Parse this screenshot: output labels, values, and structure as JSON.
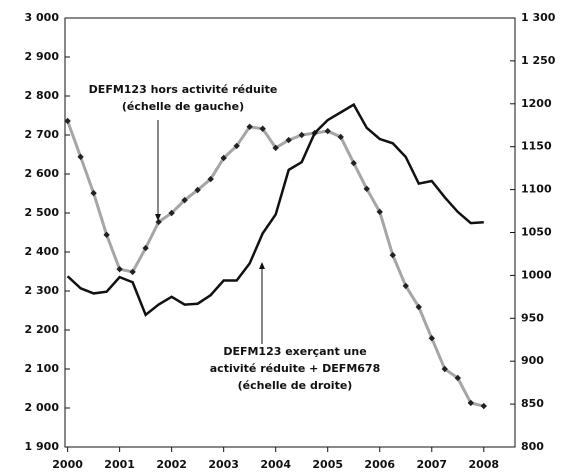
{
  "chart_data": {
    "type": "line",
    "x": [
      2000,
      2000.25,
      2000.5,
      2000.75,
      2001,
      2001.25,
      2001.5,
      2001.75,
      2002,
      2002.25,
      2002.5,
      2002.75,
      2003,
      2003.25,
      2003.5,
      2003.75,
      2004,
      2004.25,
      2004.5,
      2004.75,
      2005,
      2005.25,
      2005.5,
      2005.75,
      2006,
      2006.25,
      2006.5,
      2006.75,
      2007,
      2007.25,
      2007.5,
      2007.75,
      2008
    ],
    "series": [
      {
        "name": "DEFM123 hors activité réduite",
        "color": "#a6a6a6",
        "marker_color": "#222222",
        "axis": "y",
        "values": [
          2736,
          2644,
          2551,
          2444,
          2356,
          2349,
          2410,
          2477,
          2500,
          2533,
          2559,
          2587,
          2641,
          2672,
          2721,
          2716,
          2667,
          2687,
          2700,
          2705,
          2710,
          2695,
          2628,
          2562,
          2503,
          2392,
          2313,
          2259,
          2179,
          2100,
          2077,
          2013,
          2005
        ]
      },
      {
        "name": "DEFM123 exerçant une activité réduite + DEFM678",
        "color": "#111111",
        "axis": "y2",
        "values": [
          999,
          985,
          979,
          981,
          998,
          992,
          954,
          966,
          975,
          966,
          967,
          977,
          994,
          994,
          1014,
          1049,
          1071,
          1123,
          1132,
          1166,
          1181,
          1190,
          1199,
          1172,
          1159,
          1154,
          1138,
          1107,
          1110,
          1091,
          1074,
          1061,
          1062
        ]
      }
    ],
    "annotations": [
      {
        "lines": [
          "DEFM123 hors activité réduite",
          "(échelle de gauche)"
        ],
        "series": 0
      },
      {
        "lines": [
          "DEFM123 exerçant une",
          "activité réduite + DEFM678",
          "(échelle de droite)"
        ],
        "series": 1
      }
    ],
    "xlim": [
      1999.95,
      2008.6
    ],
    "xticks": [
      2000,
      2001,
      2002,
      2003,
      2004,
      2005,
      2006,
      2007,
      2008
    ],
    "ylim": [
      1900,
      3000
    ],
    "yticks": [
      {
        "value": 1900,
        "label": "1 900"
      },
      {
        "value": 2000,
        "label": "2 000"
      },
      {
        "value": 2100,
        "label": "2 100"
      },
      {
        "value": 2200,
        "label": "2 200"
      },
      {
        "value": 2300,
        "label": "2 300"
      },
      {
        "value": 2400,
        "label": "2 400"
      },
      {
        "value": 2500,
        "label": "2 500"
      },
      {
        "value": 2600,
        "label": "2 600"
      },
      {
        "value": 2700,
        "label": "2 700"
      },
      {
        "value": 2800,
        "label": "2 800"
      },
      {
        "value": 2900,
        "label": "2 900"
      },
      {
        "value": 3000,
        "label": "3 000"
      }
    ],
    "y2lim": [
      800,
      1300
    ],
    "y2ticks": [
      800,
      850,
      900,
      950,
      1000,
      1050,
      1100,
      1150,
      1200,
      {
        "value": 1250,
        "label": "1 250"
      },
      {
        "value": 1300,
        "label": "1 300"
      }
    ],
    "grid": false
  }
}
